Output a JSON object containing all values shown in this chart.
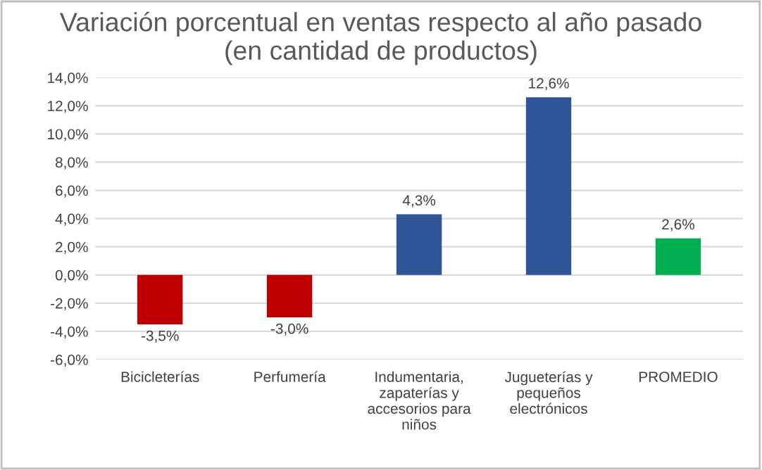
{
  "chart_data": {
    "type": "bar",
    "title": "Variación porcentual en ventas respecto al año pasado\n(en cantidad de productos)",
    "categories": [
      "Bicicleterías",
      "Perfumería",
      "Indumentaria,\nzapaterías y\naccesorios para\nniños",
      "Jugueterías y\npequeños\nelectrónicos",
      "PROMEDIO"
    ],
    "values": [
      -3.5,
      -3.0,
      4.3,
      12.6,
      2.6
    ],
    "colors": [
      "#c00000",
      "#c00000",
      "#2f5597",
      "#2f5597",
      "#00b050"
    ],
    "value_labels": [
      "-3,5%",
      "-3,0%",
      "4,3%",
      "12,6%",
      "2,6%"
    ],
    "ylim": [
      -6,
      14
    ],
    "yticks": [
      {
        "value": -6,
        "label": "-6,0%"
      },
      {
        "value": -4,
        "label": "-4,0%"
      },
      {
        "value": -2,
        "label": "-2,0%"
      },
      {
        "value": 0,
        "label": "0,0%"
      },
      {
        "value": 2,
        "label": "2,0%"
      },
      {
        "value": 4,
        "label": "4,0%"
      },
      {
        "value": 6,
        "label": "6,0%"
      },
      {
        "value": 8,
        "label": "8,0%"
      },
      {
        "value": 10,
        "label": "10,0%"
      },
      {
        "value": 12,
        "label": "12,0%"
      },
      {
        "value": 14,
        "label": "14,0%"
      }
    ],
    "grid": "y",
    "legend": false
  }
}
